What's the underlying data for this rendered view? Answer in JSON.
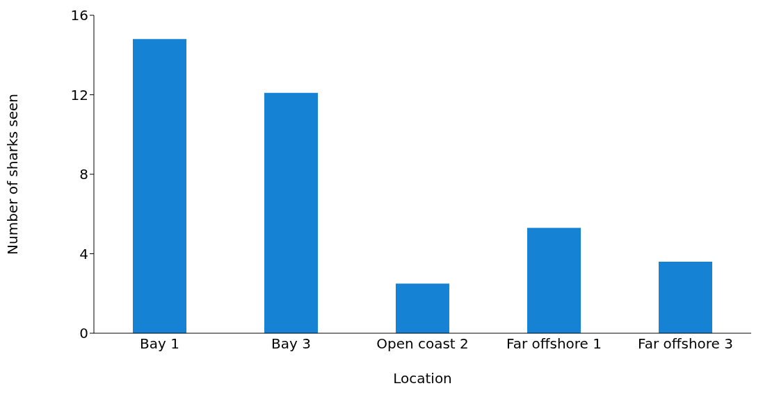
{
  "chart_data": {
    "type": "bar",
    "xlabel": "Location",
    "ylabel": "Number of sharks seen",
    "categories": [
      "Bay 1",
      "Bay 3",
      "Open coast 2",
      "Far offshore 1",
      "Far offshore 3"
    ],
    "values": [
      14.8,
      12.1,
      2.5,
      5.3,
      3.6
    ],
    "color": "#1682d4",
    "ylim": [
      0,
      16
    ],
    "yticks": [
      0,
      4,
      8,
      12,
      16
    ],
    "grid": false,
    "legend": false
  }
}
